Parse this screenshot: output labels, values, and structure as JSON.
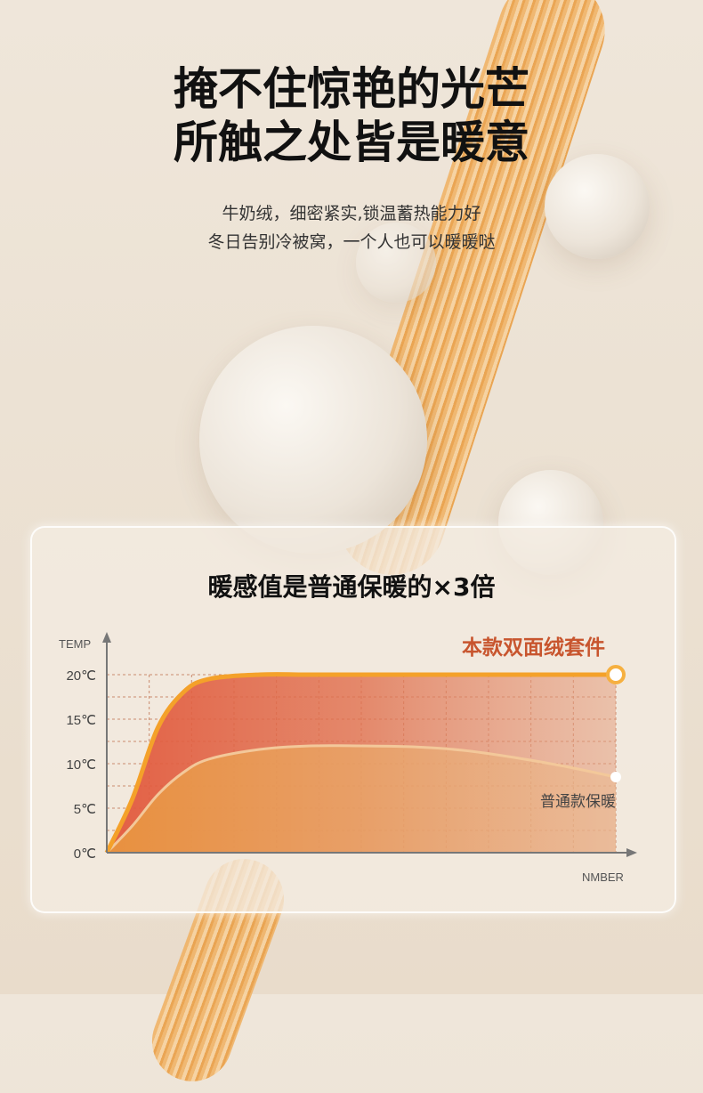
{
  "headline": [
    "掩不住惊艳的光芒",
    "所触之处皆是暖意"
  ],
  "subtext": [
    "牛奶绒，细密紧实,锁温蓄热能力好",
    "冬日告别冷被窝，一个人也可以暖暖哒"
  ],
  "card_title": "暖感值是普通保暖的×3倍",
  "colors": {
    "accent": "#c8552e",
    "top_line": "#f4a12a",
    "fill_top": "#e2583c",
    "fill_bottom": "#e8963e",
    "grid": "#c98a6e"
  },
  "chart_data": {
    "type": "area",
    "title": "暖感值是普通保暖的×3倍",
    "ylabel": "TEMP",
    "xlabel": "NMBER",
    "ylim": [
      0,
      20
    ],
    "yticks": [
      "0℃",
      "5℃",
      "10℃",
      "15℃",
      "20℃"
    ],
    "grid": true,
    "x": [
      0,
      0.5,
      1,
      1.5,
      2,
      3,
      4,
      5,
      6,
      7,
      8,
      9,
      10
    ],
    "series": [
      {
        "name": "本款双面绒套件",
        "values": [
          0,
          6,
          14,
          18,
          19.5,
          20,
          20,
          20,
          20,
          20,
          20,
          20,
          20
        ]
      },
      {
        "name": "普通款保暖",
        "values": [
          0,
          3,
          6.5,
          9,
          10.5,
          11.6,
          12,
          12,
          11.9,
          11.5,
          10.7,
          9.7,
          8.5
        ]
      }
    ]
  }
}
